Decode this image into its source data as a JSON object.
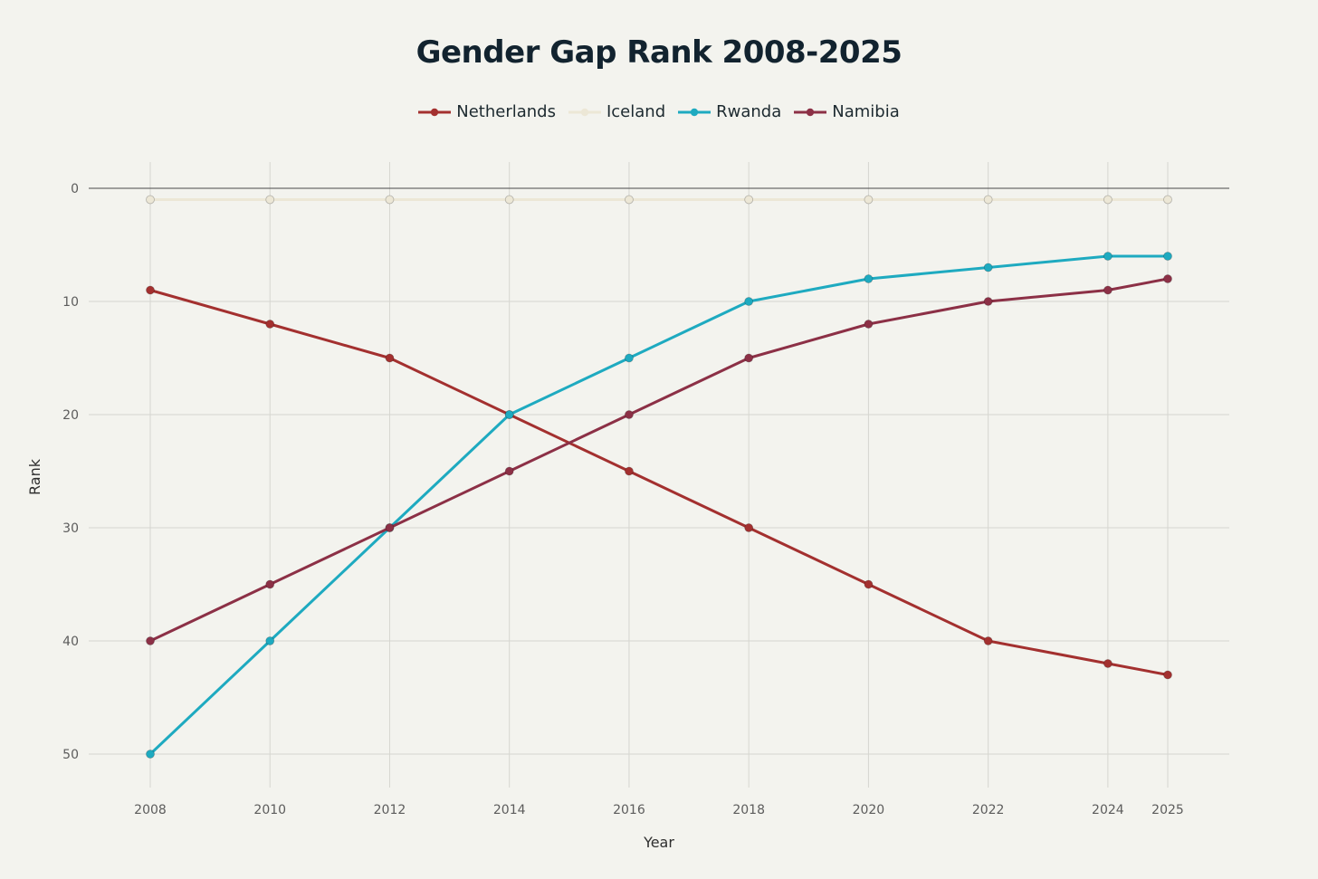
{
  "chart_data": {
    "type": "line",
    "title": "Gender Gap Rank 2008-2025",
    "xlabel": "Year",
    "ylabel": "Rank",
    "x": [
      2008,
      2010,
      2012,
      2014,
      2016,
      2018,
      2020,
      2022,
      2024,
      2025
    ],
    "xticks": [
      "2008",
      "2010",
      "2012",
      "2014",
      "2016",
      "2018",
      "2020",
      "2022",
      "2024",
      "2025"
    ],
    "yticks": [
      "0",
      "10",
      "20",
      "30",
      "40",
      "50"
    ],
    "ylim": [
      0,
      53
    ],
    "y_reversed": true,
    "grid": true,
    "legend_position": "top-center",
    "series": [
      {
        "name": "Netherlands",
        "color": "#a3302f",
        "values": [
          9,
          12,
          15,
          20,
          25,
          30,
          35,
          40,
          42,
          43
        ]
      },
      {
        "name": "Iceland",
        "color": "#ece7d6",
        "values": [
          1,
          1,
          1,
          1,
          1,
          1,
          1,
          1,
          1,
          1
        ]
      },
      {
        "name": "Rwanda",
        "color": "#1eaac0",
        "values": [
          50,
          40,
          30,
          20,
          15,
          10,
          8,
          7,
          6,
          6
        ]
      },
      {
        "name": "Namibia",
        "color": "#8c3046",
        "values": [
          40,
          35,
          30,
          25,
          20,
          15,
          12,
          10,
          9,
          8
        ]
      }
    ]
  }
}
